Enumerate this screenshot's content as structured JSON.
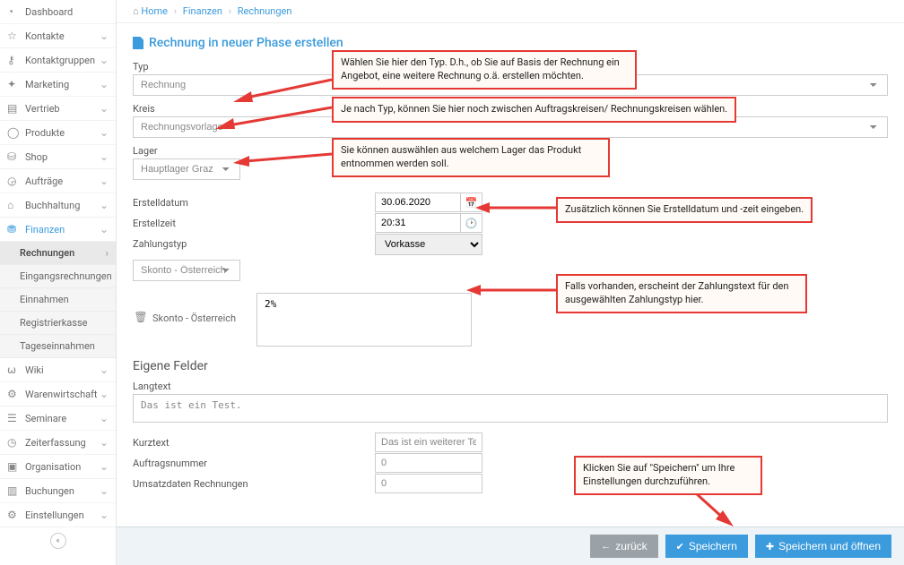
{
  "breadcrumb": {
    "home": "Home",
    "l1": "Finanzen",
    "l2": "Rechnungen"
  },
  "title": "Rechnung in neuer Phase erstellen",
  "sidebar": {
    "items": [
      {
        "id": "dashboard",
        "label": "Dashboard",
        "icon": "◔",
        "chev": false
      },
      {
        "id": "kontakte",
        "label": "Kontakte",
        "icon": "☆",
        "chev": true
      },
      {
        "id": "kontaktgruppen",
        "label": "Kontaktgruppen",
        "icon": "⚷",
        "chev": true
      },
      {
        "id": "marketing",
        "label": "Marketing",
        "icon": "✦",
        "chev": true
      },
      {
        "id": "vertrieb",
        "label": "Vertrieb",
        "icon": "▤",
        "chev": true
      },
      {
        "id": "produkte",
        "label": "Produkte",
        "icon": "◯",
        "chev": true
      },
      {
        "id": "shop",
        "label": "Shop",
        "icon": "⛁",
        "chev": true
      },
      {
        "id": "auftraege",
        "label": "Aufträge",
        "icon": "◶",
        "chev": true
      },
      {
        "id": "buchhaltung",
        "label": "Buchhaltung",
        "icon": "⌂",
        "chev": true
      },
      {
        "id": "finanzen",
        "label": "Finanzen",
        "icon": "⛃",
        "chev": true,
        "active": true,
        "children": [
          {
            "id": "rechnungen",
            "label": "Rechnungen",
            "active": true
          },
          {
            "id": "eingangsrechnungen",
            "label": "Eingangsrechnungen"
          },
          {
            "id": "einnahmen",
            "label": "Einnahmen"
          },
          {
            "id": "registrierkasse",
            "label": "Registrierkasse"
          },
          {
            "id": "tageseinnahmen",
            "label": "Tageseinnahmen"
          }
        ]
      },
      {
        "id": "wiki",
        "label": "Wiki",
        "icon": "⍵",
        "chev": true
      },
      {
        "id": "warenwirtschaft",
        "label": "Warenwirtschaft",
        "icon": "⚙",
        "chev": true
      },
      {
        "id": "seminare",
        "label": "Seminare",
        "icon": "☰",
        "chev": true
      },
      {
        "id": "zeiterfassung",
        "label": "Zeiterfassung",
        "icon": "◷",
        "chev": true
      },
      {
        "id": "organisation",
        "label": "Organisation",
        "icon": "▣",
        "chev": true
      },
      {
        "id": "buchungen",
        "label": "Buchungen",
        "icon": "▥",
        "chev": true
      },
      {
        "id": "einstellungen",
        "label": "Einstellungen",
        "icon": "⚙",
        "chev": true
      }
    ]
  },
  "form": {
    "typ_label": "Typ",
    "typ_value": "Rechnung",
    "kreis_label": "Kreis",
    "kreis_value": "Rechnungsvorlage",
    "lager_label": "Lager",
    "lager_value": "Hauptlager Graz",
    "erstelldatum_label": "Erstelldatum",
    "erstelldatum_value": "30.06.2020",
    "erstellzeit_label": "Erstellzeit",
    "erstellzeit_value": "20:31",
    "zahlungstyp_label": "Zahlungstyp",
    "zahlungstyp_value": "Vorkasse",
    "skonto_select": "Skonto - Österreich",
    "skonto_name": "Skonto - Österreich",
    "skonto_text": "2%",
    "eigene_felder": "Eigene Felder",
    "langtext_label": "Langtext",
    "langtext_value": "Das ist ein Test.",
    "kurztext_label": "Kurztext",
    "kurztext_value": "Das ist ein weiterer Test",
    "auftragsnummer_label": "Auftragsnummer",
    "auftragsnummer_value": "0",
    "umsatzdaten_label": "Umsatzdaten Rechnungen",
    "umsatzdaten_value": "0"
  },
  "callouts": {
    "c1": "Wählen Sie hier den Typ. D.h., ob Sie auf Basis der Rechnung ein Angebot, eine weitere Rechnung o.ä. erstellen möchten.",
    "c2": "Je nach Typ, können Sie hier noch zwischen Auftragskreisen/ Rechnungskreisen wählen.",
    "c3": "Sie können auswählen aus welchem Lager das Produkt entnommen werden soll.",
    "c4": "Zusätzlich können Sie Erstelldatum und -zeit eingeben.",
    "c5": "Falls vorhanden, erscheint der Zahlungstext für den ausgewählten Zahlungstyp hier.",
    "c6": "Klicken Sie auf \"Speichern\" um Ihre Einstellungen durchzuführen."
  },
  "buttons": {
    "back": "zurück",
    "save": "Speichern",
    "save_open": "Speichern und öffnen"
  }
}
